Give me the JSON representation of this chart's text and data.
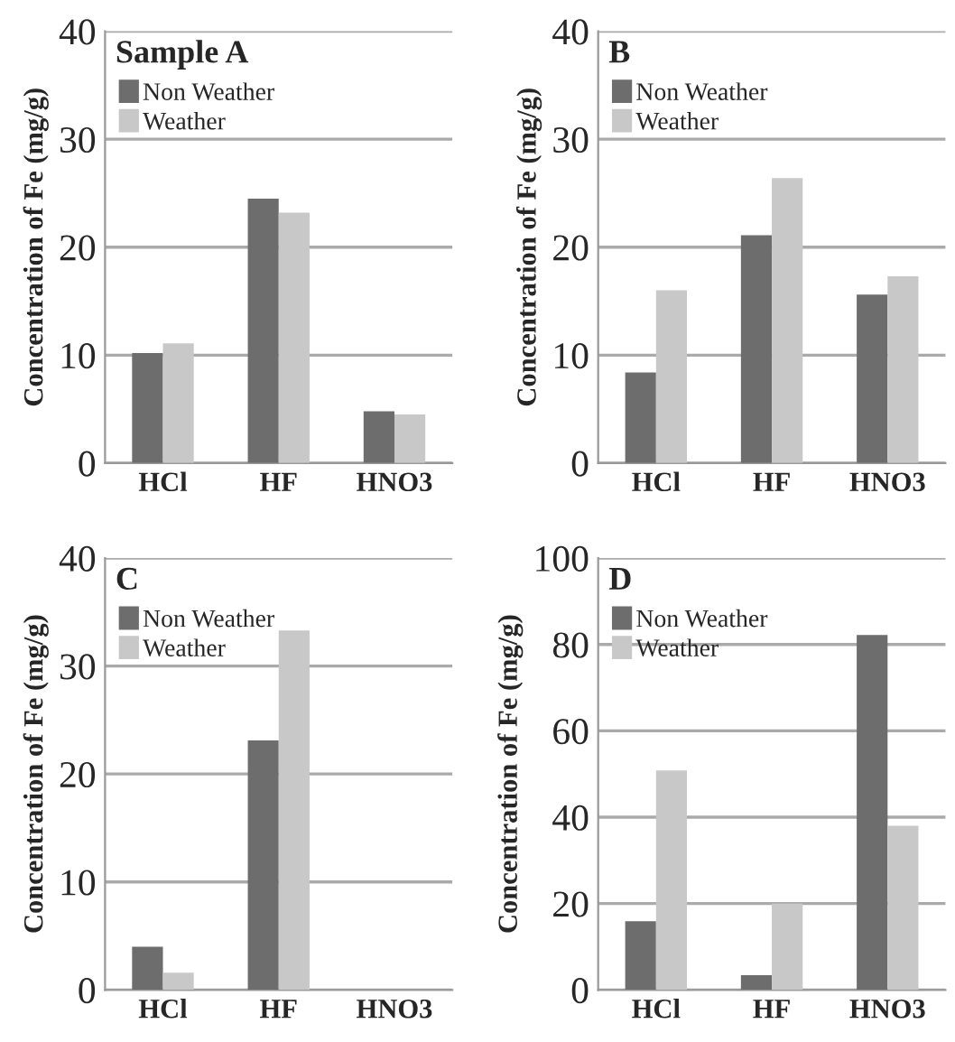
{
  "chart_data": [
    {
      "type": "bar",
      "title": "Sample A",
      "ylabel": "Concentration of Fe (mg/g)",
      "categories": [
        "HCl",
        "HF",
        "HNO3"
      ],
      "ylim": [
        0,
        40
      ],
      "yticks": [
        0,
        10,
        20,
        30,
        40
      ],
      "grid": "y",
      "legend": "top left",
      "series": [
        {
          "name": "Non Weather",
          "color": "#6d6d6d",
          "values": [
            10.2,
            24.5,
            4.8
          ]
        },
        {
          "name": "Weather",
          "color": "#c8c8c8",
          "values": [
            11.1,
            23.2,
            4.5
          ]
        }
      ]
    },
    {
      "type": "bar",
      "title": "B",
      "ylabel": "Concentration of Fe (mg/g)",
      "categories": [
        "HCl",
        "HF",
        "HNO3"
      ],
      "ylim": [
        0,
        40
      ],
      "yticks": [
        0,
        10,
        20,
        30,
        40
      ],
      "grid": "y",
      "legend": "top left",
      "series": [
        {
          "name": "Non Weather",
          "color": "#6d6d6d",
          "values": [
            8.4,
            21.1,
            15.6
          ]
        },
        {
          "name": "Weather",
          "color": "#c8c8c8",
          "values": [
            16.0,
            26.4,
            17.3
          ]
        }
      ]
    },
    {
      "type": "bar",
      "title": "C",
      "ylabel": "Concentration of Fe (mg/g)",
      "categories": [
        "HCl",
        "HF",
        "HNO3"
      ],
      "ylim": [
        0,
        40
      ],
      "yticks": [
        0,
        10,
        20,
        30,
        40
      ],
      "grid": "y",
      "legend": "top left",
      "series": [
        {
          "name": "Non Weather",
          "color": "#6d6d6d",
          "values": [
            4.0,
            23.1,
            null
          ]
        },
        {
          "name": "Weather",
          "color": "#c8c8c8",
          "values": [
            1.6,
            33.3,
            null
          ]
        }
      ]
    },
    {
      "type": "bar",
      "title": "D",
      "ylabel": "Concentration of Fe (mg/g)",
      "categories": [
        "HCl",
        "HF",
        "HNO3"
      ],
      "ylim": [
        0,
        100
      ],
      "yticks": [
        0,
        20,
        40,
        60,
        80,
        100
      ],
      "grid": "y",
      "legend": "top left",
      "series": [
        {
          "name": "Non Weather",
          "color": "#6d6d6d",
          "values": [
            15.9,
            3.4,
            82.2
          ]
        },
        {
          "name": "Weather",
          "color": "#c8c8c8",
          "values": [
            50.8,
            20.0,
            38.0
          ]
        }
      ]
    }
  ]
}
